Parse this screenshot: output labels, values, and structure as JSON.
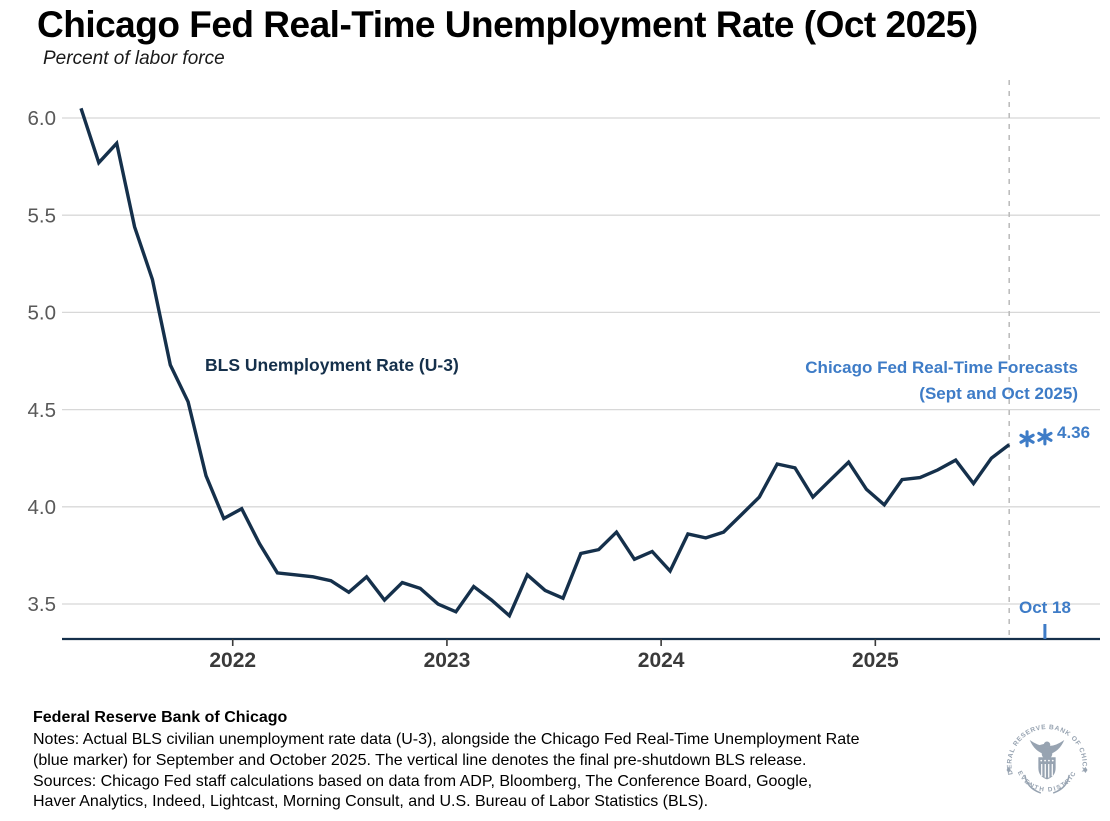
{
  "title": "Chicago Fed Real-Time Unemployment Rate (Oct 2025)",
  "subtitle": "Percent of labor force",
  "colors": {
    "line": "#15304b",
    "accent_blue": "#3e7cc7",
    "grid": "#d8d8d8",
    "dashed": "#bdbdbd",
    "y_label": "#595959",
    "x_label": "#3a3a3a",
    "seal": "#97a3b1"
  },
  "annotations": {
    "series_label": "BLS Unemployment Rate (U-3)",
    "forecast_label_line1": "Chicago Fed Real-Time Forecasts",
    "forecast_label_line2": "(Sept and Oct 2025)",
    "forecast_value_label": "4.36",
    "cutoff_label": "Oct 18"
  },
  "chart_data": {
    "type": "line",
    "title": "Chicago Fed Real-Time Unemployment Rate (Oct 2025)",
    "ylabel": "Percent of labor force",
    "frequency": "monthly",
    "x_months": [
      "2021-04",
      "2021-05",
      "2021-06",
      "2021-07",
      "2021-08",
      "2021-09",
      "2021-10",
      "2021-11",
      "2021-12",
      "2022-01",
      "2022-02",
      "2022-03",
      "2022-04",
      "2022-05",
      "2022-06",
      "2022-07",
      "2022-08",
      "2022-09",
      "2022-10",
      "2022-11",
      "2022-12",
      "2023-01",
      "2023-02",
      "2023-03",
      "2023-04",
      "2023-05",
      "2023-06",
      "2023-07",
      "2023-08",
      "2023-09",
      "2023-10",
      "2023-11",
      "2023-12",
      "2024-01",
      "2024-02",
      "2024-03",
      "2024-04",
      "2024-05",
      "2024-06",
      "2024-07",
      "2024-08",
      "2024-09",
      "2024-10",
      "2024-11",
      "2024-12",
      "2025-01",
      "2025-02",
      "2025-03",
      "2025-04",
      "2025-05",
      "2025-06",
      "2025-07",
      "2025-08"
    ],
    "series": [
      {
        "name": "BLS Unemployment Rate (U-3)",
        "values": [
          6.05,
          5.77,
          5.87,
          5.44,
          5.17,
          4.73,
          4.54,
          4.16,
          3.94,
          3.99,
          3.81,
          3.66,
          3.65,
          3.64,
          3.62,
          3.56,
          3.64,
          3.52,
          3.61,
          3.58,
          3.5,
          3.46,
          3.59,
          3.52,
          3.44,
          3.65,
          3.57,
          3.53,
          3.76,
          3.78,
          3.87,
          3.73,
          3.77,
          3.67,
          3.86,
          3.84,
          3.87,
          3.96,
          4.05,
          4.22,
          4.2,
          4.05,
          4.14,
          4.23,
          4.09,
          4.01,
          4.14,
          4.15,
          4.19,
          4.24,
          4.12,
          4.25,
          4.32
        ]
      }
    ],
    "forecasts": [
      {
        "name": "Chicago Fed Real-Time Forecast Sept 2025",
        "month": "2025-09",
        "value": 4.35
      },
      {
        "name": "Chicago Fed Real-Time Forecast Oct 2025",
        "month": "2025-10",
        "value": 4.36
      }
    ],
    "forecast_value_label": "4.36",
    "vline": {
      "month": "2025-08",
      "meaning": "final pre-shutdown BLS release"
    },
    "cutoff_tick": {
      "label": "Oct 18",
      "month": "2025-10"
    },
    "y_ticks": [
      3.5,
      4.0,
      4.5,
      5.0,
      5.5,
      6.0
    ],
    "x_ticks": [
      "2022",
      "2023",
      "2024",
      "2025"
    ],
    "ylim": [
      3.3,
      6.15
    ],
    "grid": "horizontal",
    "legend": "none (inline annotations)"
  },
  "footer": {
    "org": "Federal Reserve Bank of Chicago",
    "notes": [
      "Notes: Actual BLS civilian unemployment rate data (U-3), alongside the Chicago Fed Real-Time Unemployment Rate",
      "(blue marker) for September and October 2025. The vertical line denotes the final pre-shutdown BLS release."
    ],
    "sources": [
      "Sources: Chicago Fed staff calculations based on data from ADP, Bloomberg, The Conference Board, Google,",
      "Haver Analytics, Indeed, Lightcast, Morning Consult, and U.S. Bureau of Labor Statistics (BLS)."
    ],
    "seal_top_text": "FEDERAL RESERVE BANK OF CHICAGO",
    "seal_bottom_text": "SEVENTH DISTRICT"
  }
}
